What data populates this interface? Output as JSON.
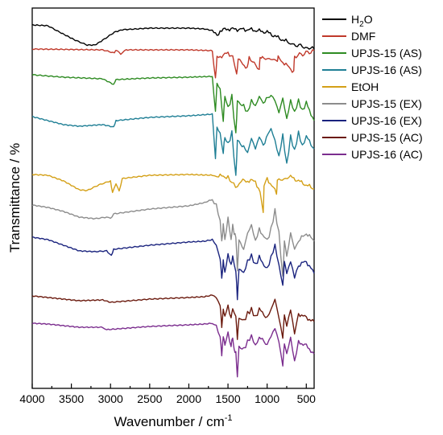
{
  "chart_data": {
    "type": "line",
    "xlabel": "Wavenumber / cm",
    "xlabel_sup": "-1",
    "ylabel": "Transmittance / %",
    "xlim": [
      4000,
      400
    ],
    "x_reversed": true,
    "y_ticks_shown": false,
    "x_ticks": [
      {
        "value": 4000,
        "label": "4000"
      },
      {
        "value": 3500,
        "label": "3500"
      },
      {
        "value": 3000,
        "label": "3000"
      },
      {
        "value": 2500,
        "label": "2500"
      },
      {
        "value": 2000,
        "label": "2000"
      },
      {
        "value": 1500,
        "label": "1500"
      },
      {
        "value": 1000,
        "label": "1000"
      },
      {
        "value": 500,
        "label": "500"
      }
    ],
    "legend_position": "top-right",
    "series": [
      {
        "name": "H2O",
        "name_base": "H",
        "name_sub": "2",
        "name_tail": "O",
        "color": "#000000",
        "baseline": 31,
        "points": [
          [
            4000,
            31
          ],
          [
            3800,
            32
          ],
          [
            3650,
            40
          ],
          [
            3450,
            50
          ],
          [
            3300,
            56
          ],
          [
            3200,
            56
          ],
          [
            3100,
            50
          ],
          [
            2950,
            40
          ],
          [
            2850,
            37
          ],
          [
            2500,
            35
          ],
          [
            2000,
            35
          ],
          [
            1800,
            36
          ],
          [
            1700,
            38
          ],
          [
            1640,
            45
          ],
          [
            1600,
            38
          ],
          [
            1500,
            36
          ],
          [
            1200,
            37
          ],
          [
            1000,
            40
          ],
          [
            900,
            45
          ],
          [
            700,
            54
          ],
          [
            550,
            58
          ],
          [
            400,
            61
          ]
        ]
      },
      {
        "name": "DMF",
        "color": "#c0392b",
        "baseline": 61,
        "points": [
          [
            4000,
            61
          ],
          [
            3100,
            62
          ],
          [
            2950,
            66
          ],
          [
            2930,
            62
          ],
          [
            2870,
            67
          ],
          [
            2800,
            62
          ],
          [
            2000,
            62
          ],
          [
            1700,
            63
          ],
          [
            1660,
            98
          ],
          [
            1640,
            72
          ],
          [
            1500,
            66
          ],
          [
            1440,
            70
          ],
          [
            1390,
            92
          ],
          [
            1370,
            74
          ],
          [
            1255,
            84
          ],
          [
            1230,
            70
          ],
          [
            1100,
            88
          ],
          [
            1090,
            70
          ],
          [
            1060,
            72
          ],
          [
            870,
            75
          ],
          [
            860,
            72
          ],
          [
            660,
            89
          ],
          [
            650,
            70
          ],
          [
            400,
            63
          ]
        ]
      },
      {
        "name": "UPJS-15 (AS)",
        "color": "#2e8b22",
        "baseline": 98,
        "points": [
          [
            4000,
            93
          ],
          [
            3600,
            96
          ],
          [
            3100,
            98
          ],
          [
            2960,
            105
          ],
          [
            2930,
            99
          ],
          [
            2500,
            97
          ],
          [
            2000,
            96
          ],
          [
            1700,
            95
          ],
          [
            1660,
            138
          ],
          [
            1640,
            105
          ],
          [
            1600,
            112
          ],
          [
            1560,
            150
          ],
          [
            1540,
            120
          ],
          [
            1500,
            135
          ],
          [
            1450,
            120
          ],
          [
            1400,
            168
          ],
          [
            1380,
            125
          ],
          [
            1300,
            132
          ],
          [
            1250,
            140
          ],
          [
            1200,
            125
          ],
          [
            1150,
            132
          ],
          [
            1100,
            120
          ],
          [
            1050,
            128
          ],
          [
            950,
            118
          ],
          [
            900,
            125
          ],
          [
            850,
            140
          ],
          [
            800,
            122
          ],
          [
            750,
            148
          ],
          [
            700,
            125
          ],
          [
            650,
            140
          ],
          [
            600,
            125
          ],
          [
            550,
            138
          ],
          [
            500,
            128
          ],
          [
            400,
            150
          ]
        ]
      },
      {
        "name": "UPJS-16 (AS)",
        "color": "#1f7f95",
        "baseline": 148,
        "points": [
          [
            4000,
            145
          ],
          [
            3800,
            150
          ],
          [
            3600,
            155
          ],
          [
            3400,
            157
          ],
          [
            3100,
            155
          ],
          [
            2960,
            158
          ],
          [
            2930,
            150
          ],
          [
            2500,
            146
          ],
          [
            2000,
            144
          ],
          [
            1700,
            142
          ],
          [
            1660,
            196
          ],
          [
            1640,
            158
          ],
          [
            1600,
            168
          ],
          [
            1560,
            190
          ],
          [
            1540,
            170
          ],
          [
            1500,
            180
          ],
          [
            1450,
            165
          ],
          [
            1400,
            220
          ],
          [
            1380,
            175
          ],
          [
            1300,
            182
          ],
          [
            1250,
            190
          ],
          [
            1200,
            172
          ],
          [
            1150,
            185
          ],
          [
            1100,
            170
          ],
          [
            1050,
            180
          ],
          [
            950,
            160
          ],
          [
            900,
            175
          ],
          [
            850,
            195
          ],
          [
            800,
            168
          ],
          [
            750,
            205
          ],
          [
            700,
            170
          ],
          [
            650,
            188
          ],
          [
            600,
            165
          ],
          [
            550,
            182
          ],
          [
            500,
            170
          ],
          [
            400,
            185
          ]
        ]
      },
      {
        "name": "EtOH",
        "color": "#d4a017",
        "baseline": 218,
        "points": [
          [
            4000,
            217
          ],
          [
            3800,
            218
          ],
          [
            3600,
            225
          ],
          [
            3400,
            236
          ],
          [
            3300,
            237
          ],
          [
            3150,
            230
          ],
          [
            3000,
            225
          ],
          [
            2975,
            240
          ],
          [
            2930,
            228
          ],
          [
            2890,
            238
          ],
          [
            2850,
            222
          ],
          [
            2500,
            218
          ],
          [
            2000,
            217
          ],
          [
            1700,
            218
          ],
          [
            1500,
            220
          ],
          [
            1450,
            228
          ],
          [
            1380,
            232
          ],
          [
            1330,
            225
          ],
          [
            1150,
            225
          ],
          [
            1090,
            240
          ],
          [
            1050,
            265
          ],
          [
            1040,
            232
          ],
          [
            1000,
            222
          ],
          [
            880,
            240
          ],
          [
            870,
            225
          ],
          [
            700,
            220
          ],
          [
            600,
            225
          ],
          [
            500,
            230
          ],
          [
            400,
            235
          ]
        ]
      },
      {
        "name": "UPJS-15 (EX)",
        "color": "#8c8c8c",
        "baseline": 255,
        "points": [
          [
            4000,
            255
          ],
          [
            3800,
            258
          ],
          [
            3600,
            263
          ],
          [
            3400,
            270
          ],
          [
            3200,
            272
          ],
          [
            3050,
            270
          ],
          [
            3000,
            272
          ],
          [
            2960,
            266
          ],
          [
            2500,
            260
          ],
          [
            2000,
            256
          ],
          [
            1800,
            252
          ],
          [
            1700,
            248
          ],
          [
            1650,
            255
          ],
          [
            1600,
            275
          ],
          [
            1580,
            300
          ],
          [
            1560,
            280
          ],
          [
            1540,
            298
          ],
          [
            1500,
            270
          ],
          [
            1460,
            300
          ],
          [
            1440,
            280
          ],
          [
            1420,
            290
          ],
          [
            1400,
            295
          ],
          [
            1380,
            335
          ],
          [
            1360,
            300
          ],
          [
            1300,
            310
          ],
          [
            1250,
            290
          ],
          [
            1200,
            280
          ],
          [
            1150,
            300
          ],
          [
            1100,
            285
          ],
          [
            1000,
            300
          ],
          [
            950,
            285
          ],
          [
            900,
            262
          ],
          [
            850,
            290
          ],
          [
            800,
            345
          ],
          [
            780,
            300
          ],
          [
            750,
            320
          ],
          [
            700,
            290
          ],
          [
            650,
            310
          ],
          [
            600,
            300
          ],
          [
            500,
            290
          ],
          [
            400,
            300
          ]
        ]
      },
      {
        "name": "UPJS-16 (EX)",
        "color": "#1a237e",
        "baseline": 295,
        "points": [
          [
            4000,
            295
          ],
          [
            3800,
            298
          ],
          [
            3600,
            305
          ],
          [
            3400,
            312
          ],
          [
            3200,
            313
          ],
          [
            3050,
            312
          ],
          [
            2990,
            318
          ],
          [
            2960,
            310
          ],
          [
            2500,
            305
          ],
          [
            2000,
            301
          ],
          [
            1800,
            300
          ],
          [
            1700,
            298
          ],
          [
            1650,
            305
          ],
          [
            1600,
            322
          ],
          [
            1580,
            345
          ],
          [
            1560,
            325
          ],
          [
            1540,
            340
          ],
          [
            1500,
            315
          ],
          [
            1460,
            330
          ],
          [
            1440,
            320
          ],
          [
            1400,
            338
          ],
          [
            1380,
            370
          ],
          [
            1360,
            335
          ],
          [
            1300,
            340
          ],
          [
            1250,
            325
          ],
          [
            1200,
            318
          ],
          [
            1150,
            330
          ],
          [
            1100,
            320
          ],
          [
            1000,
            335
          ],
          [
            950,
            320
          ],
          [
            900,
            305
          ],
          [
            850,
            330
          ],
          [
            800,
            355
          ],
          [
            780,
            325
          ],
          [
            750,
            340
          ],
          [
            700,
            325
          ],
          [
            650,
            345
          ],
          [
            600,
            330
          ],
          [
            500,
            325
          ],
          [
            400,
            340
          ]
        ]
      },
      {
        "name": "UPJS-15 (AC)",
        "color": "#6b1a0e",
        "baseline": 369,
        "points": [
          [
            4000,
            368
          ],
          [
            3800,
            370
          ],
          [
            3600,
            372
          ],
          [
            3400,
            374
          ],
          [
            3100,
            373
          ],
          [
            3000,
            376
          ],
          [
            2500,
            372
          ],
          [
            2000,
            370
          ],
          [
            1800,
            369
          ],
          [
            1700,
            367
          ],
          [
            1650,
            370
          ],
          [
            1600,
            380
          ],
          [
            1580,
            405
          ],
          [
            1560,
            385
          ],
          [
            1540,
            395
          ],
          [
            1500,
            380
          ],
          [
            1460,
            395
          ],
          [
            1440,
            385
          ],
          [
            1400,
            395
          ],
          [
            1380,
            420
          ],
          [
            1360,
            395
          ],
          [
            1300,
            400
          ],
          [
            1250,
            390
          ],
          [
            1200,
            385
          ],
          [
            1150,
            395
          ],
          [
            1100,
            385
          ],
          [
            1000,
            395
          ],
          [
            950,
            385
          ],
          [
            900,
            372
          ],
          [
            850,
            395
          ],
          [
            800,
            420
          ],
          [
            780,
            390
          ],
          [
            750,
            405
          ],
          [
            700,
            385
          ],
          [
            650,
            415
          ],
          [
            600,
            390
          ],
          [
            500,
            395
          ],
          [
            400,
            400
          ]
        ]
      },
      {
        "name": "UPJS-16 (AC)",
        "color": "#7b2d8e",
        "baseline": 402,
        "points": [
          [
            4000,
            402
          ],
          [
            3800,
            403
          ],
          [
            3600,
            405
          ],
          [
            3400,
            407
          ],
          [
            3100,
            407
          ],
          [
            3050,
            410
          ],
          [
            2500,
            406
          ],
          [
            2000,
            404
          ],
          [
            1800,
            403
          ],
          [
            1700,
            402
          ],
          [
            1650,
            405
          ],
          [
            1600,
            420
          ],
          [
            1580,
            440
          ],
          [
            1560,
            418
          ],
          [
            1540,
            430
          ],
          [
            1500,
            415
          ],
          [
            1460,
            430
          ],
          [
            1440,
            420
          ],
          [
            1420,
            435
          ],
          [
            1400,
            440
          ],
          [
            1380,
            468
          ],
          [
            1360,
            430
          ],
          [
            1300,
            435
          ],
          [
            1250,
            425
          ],
          [
            1200,
            418
          ],
          [
            1150,
            430
          ],
          [
            1100,
            420
          ],
          [
            1000,
            428
          ],
          [
            950,
            418
          ],
          [
            900,
            408
          ],
          [
            850,
            425
          ],
          [
            800,
            455
          ],
          [
            780,
            425
          ],
          [
            750,
            440
          ],
          [
            700,
            420
          ],
          [
            650,
            450
          ],
          [
            600,
            425
          ],
          [
            500,
            430
          ],
          [
            400,
            440
          ]
        ]
      }
    ]
  }
}
